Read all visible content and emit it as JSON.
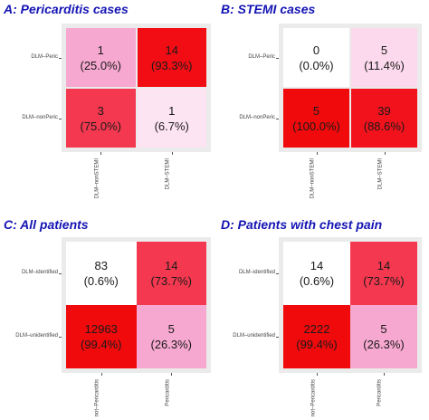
{
  "chart_data": [
    {
      "type": "heatmap",
      "title": "A: Pericarditis cases",
      "xcategories": [
        "DLM–nonSTEMI",
        "DLM–STEMI"
      ],
      "ycategories": [
        "DLM–Peric",
        "DLM–nonPeric"
      ],
      "cells": [
        {
          "row": 0,
          "col": 0,
          "count": "1",
          "pct": "(25.0%)",
          "color": "#f7a8d0"
        },
        {
          "row": 0,
          "col": 1,
          "count": "14",
          "pct": "(93.3%)",
          "color": "#f20d14"
        },
        {
          "row": 1,
          "col": 0,
          "count": "3",
          "pct": "(75.0%)",
          "color": "#f4384f"
        },
        {
          "row": 1,
          "col": 1,
          "count": "1",
          "pct": "(6.7%)",
          "color": "#fde4f2"
        }
      ]
    },
    {
      "type": "heatmap",
      "title": "B: STEMI cases",
      "xcategories": [
        "DLM–nonSTEMI",
        "DLM–STEMI"
      ],
      "ycategories": [
        "DLM–Peric",
        "DLM–nonPeric"
      ],
      "cells": [
        {
          "row": 0,
          "col": 0,
          "count": "0",
          "pct": "(0.0%)",
          "color": "#ffffff"
        },
        {
          "row": 0,
          "col": 1,
          "count": "5",
          "pct": "(11.4%)",
          "color": "#fcd9ec"
        },
        {
          "row": 1,
          "col": 0,
          "count": "5",
          "pct": "(100.0%)",
          "color": "#f00a0c"
        },
        {
          "row": 1,
          "col": 1,
          "count": "39",
          "pct": "(88.6%)",
          "color": "#f2121c"
        }
      ]
    },
    {
      "type": "heatmap",
      "title": "C: All patients",
      "xcategories": [
        "not–Pericarditis",
        "Pericarditis"
      ],
      "ycategories": [
        "DLM–identified",
        "DLM–unidentified"
      ],
      "cells": [
        {
          "row": 0,
          "col": 0,
          "count": "83",
          "pct": "(0.6%)",
          "color": "#ffffff"
        },
        {
          "row": 0,
          "col": 1,
          "count": "14",
          "pct": "(73.7%)",
          "color": "#f4384f"
        },
        {
          "row": 1,
          "col": 0,
          "count": "12963",
          "pct": "(99.4%)",
          "color": "#f00a0c"
        },
        {
          "row": 1,
          "col": 1,
          "count": "5",
          "pct": "(26.3%)",
          "color": "#f7a8d0"
        }
      ]
    },
    {
      "type": "heatmap",
      "title": "D: Patients with chest pain",
      "xcategories": [
        "not–Pericarditis",
        "Pericarditis"
      ],
      "ycategories": [
        "DLM–identified",
        "DLM–unidentified"
      ],
      "cells": [
        {
          "row": 0,
          "col": 0,
          "count": "14",
          "pct": "(0.6%)",
          "color": "#ffffff"
        },
        {
          "row": 0,
          "col": 1,
          "count": "14",
          "pct": "(73.7%)",
          "color": "#f4384f"
        },
        {
          "row": 1,
          "col": 0,
          "count": "2222",
          "pct": "(99.4%)",
          "color": "#f00a0c"
        },
        {
          "row": 1,
          "col": 1,
          "count": "5",
          "pct": "(26.3%)",
          "color": "#f7a8d0"
        }
      ]
    }
  ]
}
